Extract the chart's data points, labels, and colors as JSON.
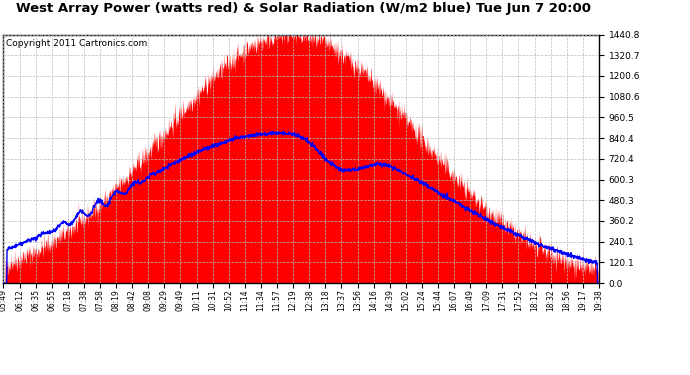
{
  "title": "West Array Power (watts red) & Solar Radiation (W/m2 blue) Tue Jun 7 20:00",
  "copyright": "Copyright 2011 Cartronics.com",
  "ymin": 0.0,
  "ymax": 1440.8,
  "yticks": [
    0.0,
    120.1,
    240.1,
    360.2,
    480.3,
    600.3,
    720.4,
    840.4,
    960.5,
    1080.6,
    1200.6,
    1320.7,
    1440.8
  ],
  "x_labels": [
    "05:49",
    "06:12",
    "06:35",
    "06:55",
    "07:18",
    "07:38",
    "07:58",
    "08:19",
    "08:42",
    "09:08",
    "09:29",
    "09:49",
    "10:11",
    "10:31",
    "10:52",
    "11:14",
    "11:34",
    "11:57",
    "12:19",
    "12:38",
    "13:18",
    "13:37",
    "13:56",
    "14:16",
    "14:39",
    "15:02",
    "15:24",
    "15:44",
    "16:07",
    "16:49",
    "17:09",
    "17:31",
    "17:52",
    "18:12",
    "18:32",
    "18:56",
    "19:17",
    "19:38"
  ],
  "fill_color": "#FF0000",
  "line_color": "#0000FF",
  "background_color": "#FFFFFF",
  "grid_color": "#BBBBBB",
  "title_fontsize": 9.5,
  "copyright_fontsize": 6.5
}
